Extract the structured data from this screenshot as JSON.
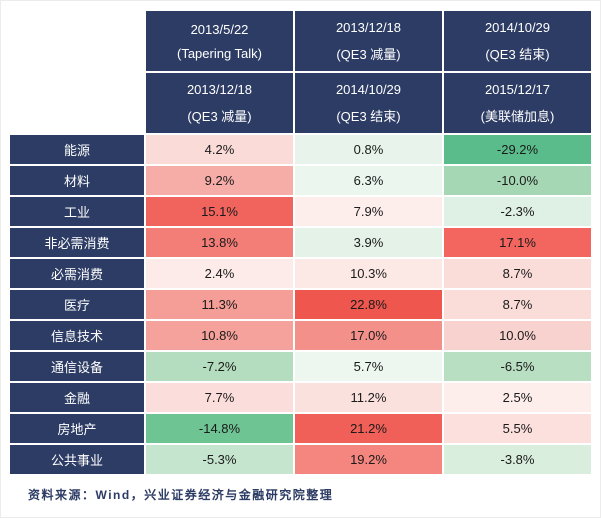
{
  "colors": {
    "header_bg": "#2d3c64",
    "header_text": "#ffffff",
    "page_bg": "#ffffff",
    "cell_text": "#1a1a1a",
    "footer_text": "#2d3c64",
    "positive_high": "#ee564e",
    "negative_low": "#5abc8b"
  },
  "header": {
    "row1": [
      {
        "line1": "2013/5/22",
        "line2": "(Tapering Talk)"
      },
      {
        "line1": "2013/12/18",
        "line2": "(QE3 减量)"
      },
      {
        "line1": "2014/10/29",
        "line2": "(QE3 结束)"
      }
    ],
    "row2": [
      {
        "line1": "2013/12/18",
        "line2": "(QE3 减量)"
      },
      {
        "line1": "2014/10/29",
        "line2": "(QE3 结束)"
      },
      {
        "line1": "2015/12/17",
        "line2": "(美联储加息)"
      }
    ]
  },
  "rows": [
    {
      "label": "能源",
      "cells": [
        {
          "text": "4.2%",
          "bg": "#fadbd8"
        },
        {
          "text": "0.8%",
          "bg": "#e8f4eb"
        },
        {
          "text": "-29.2%",
          "bg": "#5abc8b"
        }
      ]
    },
    {
      "label": "材料",
      "cells": [
        {
          "text": "9.2%",
          "bg": "#f6ada8"
        },
        {
          "text": "6.3%",
          "bg": "#ebf6ee"
        },
        {
          "text": "-10.0%",
          "bg": "#a6d7b4"
        }
      ]
    },
    {
      "label": "工业",
      "cells": [
        {
          "text": "15.1%",
          "bg": "#f1645d"
        },
        {
          "text": "7.9%",
          "bg": "#fdeeec"
        },
        {
          "text": "-2.3%",
          "bg": "#dff0e4"
        }
      ]
    },
    {
      "label": "非必需消费",
      "cells": [
        {
          "text": "13.8%",
          "bg": "#f37e77"
        },
        {
          "text": "3.9%",
          "bg": "#e4f2e8"
        },
        {
          "text": "17.1%",
          "bg": "#f2665f"
        }
      ]
    },
    {
      "label": "必需消费",
      "cells": [
        {
          "text": "2.4%",
          "bg": "#fcebe9"
        },
        {
          "text": "10.3%",
          "bg": "#fce8e5"
        },
        {
          "text": "8.7%",
          "bg": "#fadcd9"
        }
      ]
    },
    {
      "label": "医疗",
      "cells": [
        {
          "text": "11.3%",
          "bg": "#f59d97"
        },
        {
          "text": "22.8%",
          "bg": "#ee564e"
        },
        {
          "text": "8.7%",
          "bg": "#fadcd9"
        }
      ]
    },
    {
      "label": "信息技术",
      "cells": [
        {
          "text": "10.8%",
          "bg": "#f6a29c"
        },
        {
          "text": "17.0%",
          "bg": "#f4908a"
        },
        {
          "text": "10.0%",
          "bg": "#f8d2ce"
        }
      ]
    },
    {
      "label": "通信设备",
      "cells": [
        {
          "text": "-7.2%",
          "bg": "#b4ddbf"
        },
        {
          "text": "5.7%",
          "bg": "#edf7f0"
        },
        {
          "text": "-6.5%",
          "bg": "#b9dfc3"
        }
      ]
    },
    {
      "label": "金融",
      "cells": [
        {
          "text": "7.7%",
          "bg": "#fbdedb"
        },
        {
          "text": "11.2%",
          "bg": "#fbe1de"
        },
        {
          "text": "2.5%",
          "bg": "#fdedeb"
        }
      ]
    },
    {
      "label": "房地产",
      "cells": [
        {
          "text": "-14.8%",
          "bg": "#6fc494"
        },
        {
          "text": "21.2%",
          "bg": "#f06058"
        },
        {
          "text": "5.5%",
          "bg": "#fbe0dd"
        }
      ]
    },
    {
      "label": "公共事业",
      "cells": [
        {
          "text": "-5.3%",
          "bg": "#c6e5ce"
        },
        {
          "text": "19.2%",
          "bg": "#f4867f"
        },
        {
          "text": "-3.8%",
          "bg": "#daeede"
        }
      ]
    }
  ],
  "footer": {
    "source": "资料来源：Wind，兴业证券经济与金融研究院整理"
  },
  "chart_data": {
    "type": "heatmap",
    "unit": "%",
    "periods": [
      {
        "from": "2013/5/22 (Tapering Talk)",
        "to": "2013/12/18 (QE3 减量)"
      },
      {
        "from": "2013/12/18 (QE3 减量)",
        "to": "2014/10/29 (QE3 结束)"
      },
      {
        "from": "2014/10/29 (QE3 结束)",
        "to": "2015/12/17 (美联储加息)"
      }
    ],
    "row_labels": [
      "能源",
      "材料",
      "工业",
      "非必需消费",
      "必需消费",
      "医疗",
      "信息技术",
      "通信设备",
      "金融",
      "房地产",
      "公共事业"
    ],
    "values": [
      [
        4.2,
        0.8,
        -29.2
      ],
      [
        9.2,
        6.3,
        -10.0
      ],
      [
        15.1,
        7.9,
        -2.3
      ],
      [
        13.8,
        3.9,
        17.1
      ],
      [
        2.4,
        10.3,
        8.7
      ],
      [
        11.3,
        22.8,
        8.7
      ],
      [
        10.8,
        17.0,
        10.0
      ],
      [
        -7.2,
        5.7,
        -6.5
      ],
      [
        7.7,
        11.2,
        2.5
      ],
      [
        -14.8,
        21.2,
        5.5
      ],
      [
        -5.3,
        19.2,
        -3.8
      ]
    ],
    "color_scale": {
      "high": "red",
      "low": "green"
    },
    "source_note": "资料来源：Wind，兴业证券经济与金融研究院整理"
  }
}
